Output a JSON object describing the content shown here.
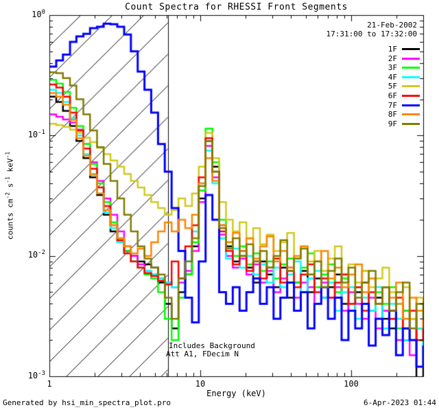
{
  "header": {
    "title": "Count Spectra for RHESSI Front Segments",
    "date": "21-Feb-2002",
    "time_range": "17:31:00 to 17:32:00"
  },
  "axes": {
    "x": {
      "label": "Energy (keV)",
      "tick_labels": [
        "1",
        "10",
        "100"
      ],
      "tick_values": [
        1,
        10,
        100
      ]
    },
    "y": {
      "unit_parts": [
        {
          "t": "counts cm"
        },
        {
          "sup": "-2"
        },
        {
          "t": " s"
        },
        {
          "sup": "-1"
        },
        {
          "t": " keV"
        },
        {
          "sup": "-1"
        }
      ],
      "tick_labels": [
        {
          "base": "10",
          "exp": "0",
          "value": 1
        },
        {
          "base": "10",
          "exp": "-1",
          "value": 0.1
        },
        {
          "base": "10",
          "exp": "-2",
          "value": 0.01
        },
        {
          "base": "10",
          "exp": "-3",
          "value": 0.001
        }
      ]
    }
  },
  "annotations": {
    "line1": "Includes Background",
    "line2": "Att A1, FDecim N"
  },
  "footer": {
    "left": "Generated by hsi_min_spectra_plot.pro",
    "right": "6-Apr-2023 01:44"
  },
  "chart_data": {
    "type": "line",
    "style": "stepped-histogram",
    "x_scale": "log",
    "y_scale": "log",
    "title": "Count Spectra for RHESSI Front Segments",
    "xlabel": "Energy (keV)",
    "ylabel": "counts cm^-2 s^-1 keV^-1",
    "xlim": [
      1,
      300.7
    ],
    "ylim": [
      0.001,
      1
    ],
    "grid": false,
    "legend_position": "upper right",
    "hatch_region_kev": [
      1.0,
      6.1
    ],
    "energy_bin_edges_kev": [
      1.0,
      1.11,
      1.23,
      1.37,
      1.51,
      1.68,
      1.86,
      2.07,
      2.29,
      2.54,
      2.82,
      3.13,
      3.47,
      3.85,
      4.27,
      4.73,
      5.25,
      5.82,
      6.46,
      7.17,
      7.95,
      8.82,
      9.78,
      10.85,
      12.04,
      13.35,
      14.81,
      16.43,
      18.23,
      20.23,
      22.44,
      24.89,
      27.61,
      30.63,
      33.98,
      37.7,
      41.83,
      46.4,
      51.48,
      57.11,
      63.36,
      70.29,
      77.98,
      86.51,
      95.98,
      106.5,
      118.1,
      131.0,
      145.4,
      161.3,
      178.9,
      198.5,
      220.2,
      244.3,
      271.0,
      300.7
    ],
    "series": [
      {
        "name": "1F",
        "color": "#000000",
        "values": [
          0.21,
          0.19,
          0.16,
          0.12,
          0.09,
          0.065,
          0.045,
          0.032,
          0.022,
          0.016,
          0.013,
          0.011,
          0.01,
          0.009,
          0.0085,
          0.008,
          0.006,
          0.004,
          0.0025,
          0.005,
          0.007,
          0.012,
          0.03,
          0.09,
          0.055,
          0.018,
          0.012,
          0.009,
          0.011,
          0.008,
          0.006,
          0.009,
          0.007,
          0.0055,
          0.008,
          0.0045,
          0.006,
          0.0075,
          0.005,
          0.0065,
          0.0045,
          0.0055,
          0.007,
          0.004,
          0.0035,
          0.005,
          0.006,
          0.0035,
          0.0045,
          0.003,
          0.0025,
          0.004,
          0.002,
          0.003,
          0.0009,
          0.002
        ]
      },
      {
        "name": "2F",
        "color": "#ff00ff",
        "values": [
          0.15,
          0.143,
          0.136,
          0.128,
          0.112,
          0.085,
          0.06,
          0.042,
          0.03,
          0.022,
          0.016,
          0.012,
          0.01,
          0.0085,
          0.0075,
          0.007,
          0.0065,
          0.006,
          0.0055,
          0.006,
          0.0075,
          0.011,
          0.028,
          0.082,
          0.045,
          0.015,
          0.01,
          0.008,
          0.0095,
          0.007,
          0.0085,
          0.006,
          0.0075,
          0.005,
          0.0065,
          0.008,
          0.0045,
          0.006,
          0.0055,
          0.004,
          0.006,
          0.0045,
          0.0055,
          0.0035,
          0.005,
          0.004,
          0.003,
          0.0045,
          0.0025,
          0.0035,
          0.003,
          0.002,
          0.0035,
          0.0015,
          0.0025,
          0.002
        ]
      },
      {
        "name": "3F",
        "color": "#00ff00",
        "values": [
          0.29,
          0.27,
          0.23,
          0.17,
          0.12,
          0.085,
          0.058,
          0.04,
          0.028,
          0.019,
          0.014,
          0.011,
          0.009,
          0.008,
          0.007,
          0.0065,
          0.005,
          0.003,
          0.002,
          0.0045,
          0.007,
          0.013,
          0.035,
          0.114,
          0.06,
          0.02,
          0.013,
          0.01,
          0.012,
          0.0085,
          0.0105,
          0.0075,
          0.009,
          0.0065,
          0.0085,
          0.0095,
          0.006,
          0.008,
          0.0105,
          0.0055,
          0.007,
          0.0085,
          0.005,
          0.0065,
          0.004,
          0.0055,
          0.0075,
          0.0035,
          0.005,
          0.004,
          0.0055,
          0.0025,
          0.0035,
          0.003,
          0.002,
          0.0025
        ]
      },
      {
        "name": "4F",
        "color": "#00ffff",
        "values": [
          0.24,
          0.225,
          0.19,
          0.14,
          0.1,
          0.07,
          0.048,
          0.033,
          0.023,
          0.017,
          0.013,
          0.0105,
          0.009,
          0.008,
          0.0075,
          0.007,
          0.0065,
          0.006,
          0.0055,
          0.0065,
          0.009,
          0.016,
          0.04,
          0.075,
          0.04,
          0.014,
          0.0095,
          0.0115,
          0.008,
          0.01,
          0.007,
          0.0085,
          0.006,
          0.008,
          0.0055,
          0.007,
          0.009,
          0.005,
          0.0065,
          0.0075,
          0.0045,
          0.006,
          0.0035,
          0.005,
          0.0055,
          0.003,
          0.0045,
          0.0035,
          0.0055,
          0.0025,
          0.004,
          0.003,
          0.002,
          0.003,
          0.0025,
          0.0015
        ]
      },
      {
        "name": "5F",
        "color": "#d2c81e",
        "values": [
          0.125,
          0.122,
          0.118,
          0.112,
          0.105,
          0.096,
          0.088,
          0.079,
          0.07,
          0.062,
          0.055,
          0.048,
          0.042,
          0.037,
          0.032,
          0.028,
          0.025,
          0.022,
          0.024,
          0.03,
          0.026,
          0.033,
          0.055,
          0.105,
          0.065,
          0.028,
          0.02,
          0.016,
          0.019,
          0.014,
          0.017,
          0.0125,
          0.015,
          0.011,
          0.013,
          0.0155,
          0.0095,
          0.012,
          0.009,
          0.011,
          0.0075,
          0.0095,
          0.012,
          0.007,
          0.0085,
          0.006,
          0.0075,
          0.0055,
          0.0065,
          0.008,
          0.005,
          0.004,
          0.0055,
          0.003,
          0.0045,
          0.0035
        ]
      },
      {
        "name": "6F",
        "color": "#ff0000",
        "values": [
          0.265,
          0.25,
          0.21,
          0.155,
          0.11,
          0.078,
          0.053,
          0.037,
          0.026,
          0.018,
          0.0135,
          0.0105,
          0.009,
          0.008,
          0.0072,
          0.0068,
          0.0062,
          0.0058,
          0.009,
          0.0065,
          0.012,
          0.018,
          0.045,
          0.095,
          0.05,
          0.016,
          0.011,
          0.0085,
          0.01,
          0.0075,
          0.009,
          0.0065,
          0.008,
          0.0095,
          0.006,
          0.0075,
          0.0055,
          0.007,
          0.0085,
          0.005,
          0.0065,
          0.0045,
          0.006,
          0.007,
          0.004,
          0.0055,
          0.0035,
          0.005,
          0.004,
          0.0055,
          0.003,
          0.0045,
          0.0025,
          0.0035,
          0.002,
          0.003
        ]
      },
      {
        "name": "7F",
        "color": "#0000ff",
        "values": [
          0.373,
          0.42,
          0.47,
          0.6,
          0.665,
          0.7,
          0.78,
          0.8,
          0.85,
          0.84,
          0.8,
          0.69,
          0.5,
          0.34,
          0.24,
          0.155,
          0.085,
          0.05,
          0.025,
          0.011,
          0.0045,
          0.0028,
          0.009,
          0.032,
          0.02,
          0.005,
          0.004,
          0.0055,
          0.0035,
          0.005,
          0.0065,
          0.004,
          0.0055,
          0.003,
          0.0045,
          0.006,
          0.0035,
          0.005,
          0.0025,
          0.004,
          0.0055,
          0.003,
          0.0045,
          0.002,
          0.0035,
          0.0025,
          0.004,
          0.0018,
          0.003,
          0.0022,
          0.0035,
          0.0015,
          0.0025,
          0.002,
          0.0012,
          0.0018
        ]
      },
      {
        "name": "8F",
        "color": "#ff8500",
        "values": [
          0.225,
          0.21,
          0.18,
          0.135,
          0.095,
          0.068,
          0.047,
          0.033,
          0.024,
          0.018,
          0.014,
          0.012,
          0.0105,
          0.0115,
          0.01,
          0.013,
          0.016,
          0.019,
          0.016,
          0.02,
          0.017,
          0.022,
          0.04,
          0.065,
          0.042,
          0.018,
          0.013,
          0.0155,
          0.011,
          0.014,
          0.0095,
          0.012,
          0.0145,
          0.009,
          0.011,
          0.008,
          0.01,
          0.012,
          0.007,
          0.009,
          0.011,
          0.0065,
          0.008,
          0.0055,
          0.007,
          0.0085,
          0.005,
          0.0065,
          0.004,
          0.0055,
          0.0045,
          0.006,
          0.003,
          0.0045,
          0.0035,
          0.0025
        ]
      },
      {
        "name": "9F",
        "color": "#807b00",
        "values": [
          0.335,
          0.33,
          0.3,
          0.26,
          0.2,
          0.15,
          0.11,
          0.08,
          0.058,
          0.042,
          0.03,
          0.022,
          0.016,
          0.012,
          0.0095,
          0.008,
          0.007,
          0.0045,
          0.003,
          0.0065,
          0.009,
          0.014,
          0.038,
          0.09,
          0.05,
          0.017,
          0.0115,
          0.014,
          0.01,
          0.0125,
          0.009,
          0.011,
          0.008,
          0.01,
          0.0135,
          0.0075,
          0.0095,
          0.0115,
          0.007,
          0.009,
          0.0055,
          0.0075,
          0.0095,
          0.006,
          0.008,
          0.0045,
          0.006,
          0.0075,
          0.004,
          0.0055,
          0.0035,
          0.005,
          0.006,
          0.0025,
          0.004,
          0.003
        ]
      }
    ]
  }
}
